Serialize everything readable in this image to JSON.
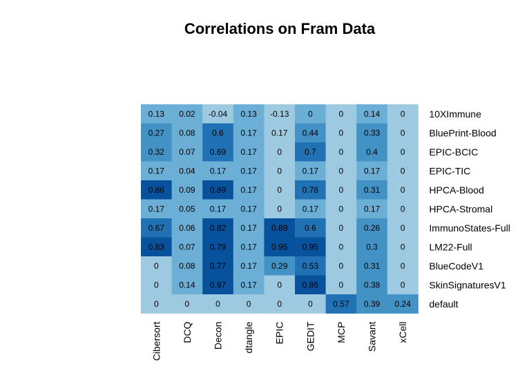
{
  "chart_data": {
    "type": "heatmap",
    "title": "Correlations on Fram Data",
    "rows": [
      "10XImmune",
      "BluePrint-Blood",
      "EPIC-BCIC",
      "EPIC-TIC",
      "HPCA-Blood",
      "HPCA-Stromal",
      "ImmunoStates-Full",
      "LM22-Full",
      "BlueCodeV1",
      "SkinSignaturesV1",
      "default"
    ],
    "columns": [
      "Cibersort",
      "DCQ",
      "Decon",
      "dtangle",
      "EPIC",
      "GEDIT",
      "MCP",
      "Savant",
      "xCell"
    ],
    "cell_labels": [
      [
        "0.13",
        "0.02",
        "-0.04",
        "0.13",
        "-0.13",
        "0",
        "0",
        "0.14",
        "0"
      ],
      [
        "0.27",
        "0.08",
        "0.6",
        "0.17",
        "0.17",
        "0.44",
        "0",
        "0.33",
        "0"
      ],
      [
        "0.32",
        "0.07",
        "0.69",
        "0.17",
        "0",
        "0.7",
        "0",
        "0.4",
        "0"
      ],
      [
        "0.17",
        "0.04",
        "0.17",
        "0.17",
        "0",
        "0.17",
        "0",
        "0.17",
        "0"
      ],
      [
        "0.86",
        "0.09",
        "0.89",
        "0.17",
        "0",
        "0.78",
        "0",
        "0.31",
        "0"
      ],
      [
        "0.17",
        "0.05",
        "0.17",
        "0.17",
        "0",
        "0.17",
        "0",
        "0.17",
        "0"
      ],
      [
        "0.67",
        "0.06",
        "0.82",
        "0.17",
        "0.89",
        "0.6",
        "0",
        "0.26",
        "0"
      ],
      [
        "0.83",
        "0.07",
        "0.79",
        "0.17",
        "0.95",
        "0.95",
        "0",
        "0.3",
        "0"
      ],
      [
        "0",
        "0.08",
        "0.77",
        "0.17",
        "0.29",
        "0.53",
        "0",
        "0.31",
        "0"
      ],
      [
        "0",
        "0.14",
        "0.97",
        "0.17",
        "0",
        "0.86",
        "0",
        "0.38",
        "0"
      ],
      [
        "0",
        "0",
        "0",
        "0",
        "0",
        "0",
        "0.57",
        "0.39",
        "0.24"
      ]
    ],
    "values": [
      [
        0.13,
        0.02,
        -0.04,
        0.13,
        -0.13,
        0,
        0,
        0.14,
        0
      ],
      [
        0.27,
        0.08,
        0.6,
        0.17,
        0.17,
        0.44,
        0,
        0.33,
        0
      ],
      [
        0.32,
        0.07,
        0.69,
        0.17,
        0,
        0.7,
        0,
        0.4,
        0
      ],
      [
        0.17,
        0.04,
        0.17,
        0.17,
        0,
        0.17,
        0,
        0.17,
        0
      ],
      [
        0.86,
        0.09,
        0.89,
        0.17,
        0,
        0.78,
        0,
        0.31,
        0
      ],
      [
        0.17,
        0.05,
        0.17,
        0.17,
        0,
        0.17,
        0,
        0.17,
        0
      ],
      [
        0.67,
        0.06,
        0.82,
        0.17,
        0.89,
        0.6,
        0,
        0.26,
        0
      ],
      [
        0.83,
        0.07,
        0.79,
        0.17,
        0.95,
        0.95,
        0,
        0.3,
        0
      ],
      [
        0,
        0.08,
        0.77,
        0.17,
        0.29,
        0.53,
        0,
        0.31,
        0
      ],
      [
        0,
        0.14,
        0.97,
        0.17,
        0,
        0.86,
        0,
        0.38,
        0
      ],
      [
        0,
        0,
        0,
        0,
        0,
        0,
        0.57,
        0.39,
        0.24
      ]
    ],
    "cell_colors": [
      [
        "#6baed6",
        "#6baed6",
        "#9ecae1",
        "#6baed6",
        "#9ecae1",
        "#6baed6",
        "#9ecae1",
        "#6baed6",
        "#9ecae1"
      ],
      [
        "#4292c6",
        "#6baed6",
        "#2171b5",
        "#6baed6",
        "#9ecae1",
        "#4292c6",
        "#9ecae1",
        "#4292c6",
        "#9ecae1"
      ],
      [
        "#4292c6",
        "#6baed6",
        "#2171b5",
        "#6baed6",
        "#9ecae1",
        "#2171b5",
        "#9ecae1",
        "#4292c6",
        "#9ecae1"
      ],
      [
        "#6baed6",
        "#6baed6",
        "#6baed6",
        "#6baed6",
        "#9ecae1",
        "#6baed6",
        "#9ecae1",
        "#6baed6",
        "#9ecae1"
      ],
      [
        "#08519c",
        "#6baed6",
        "#08519c",
        "#6baed6",
        "#9ecae1",
        "#2171b5",
        "#9ecae1",
        "#4292c6",
        "#9ecae1"
      ],
      [
        "#6baed6",
        "#6baed6",
        "#6baed6",
        "#6baed6",
        "#9ecae1",
        "#6baed6",
        "#9ecae1",
        "#6baed6",
        "#9ecae1"
      ],
      [
        "#2171b5",
        "#6baed6",
        "#08519c",
        "#6baed6",
        "#08519c",
        "#2171b5",
        "#9ecae1",
        "#4292c6",
        "#9ecae1"
      ],
      [
        "#08519c",
        "#6baed6",
        "#08519c",
        "#6baed6",
        "#08519c",
        "#08519c",
        "#9ecae1",
        "#4292c6",
        "#9ecae1"
      ],
      [
        "#9ecae1",
        "#6baed6",
        "#08519c",
        "#6baed6",
        "#4292c6",
        "#2171b5",
        "#9ecae1",
        "#4292c6",
        "#9ecae1"
      ],
      [
        "#9ecae1",
        "#6baed6",
        "#08519c",
        "#6baed6",
        "#9ecae1",
        "#08519c",
        "#9ecae1",
        "#4292c6",
        "#9ecae1"
      ],
      [
        "#9ecae1",
        "#9ecae1",
        "#9ecae1",
        "#9ecae1",
        "#9ecae1",
        "#9ecae1",
        "#2171b5",
        "#4292c6",
        "#4292c6"
      ]
    ],
    "color_scale": [
      "#9ecae1",
      "#6baed6",
      "#4292c6",
      "#2171b5",
      "#08519c"
    ],
    "row_label_position": "right",
    "column_label_position": "bottom",
    "legend": "none",
    "grid": false
  }
}
